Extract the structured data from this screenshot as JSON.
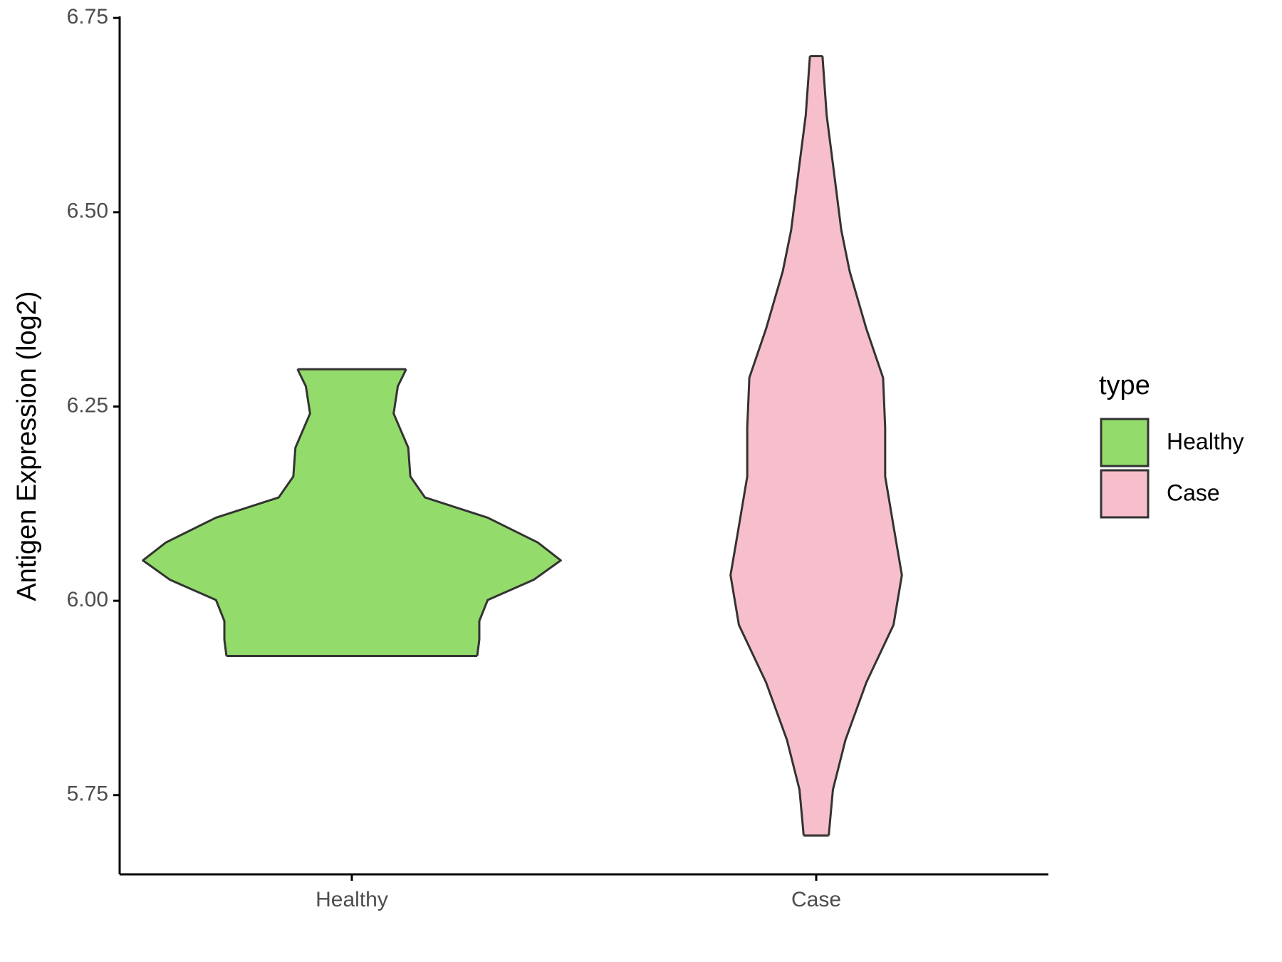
{
  "chart_data": {
    "type": "violin",
    "ylabel": "Antigen Expression (log2)",
    "categories": [
      "Healthy",
      "Case"
    ],
    "series": [
      {
        "name": "Healthy",
        "color": "#93dc6b",
        "y": [
          5.929,
          5.95,
          5.974,
          6.001,
          6.027,
          6.052,
          6.075,
          6.107,
          6.133,
          6.16,
          6.197,
          6.241,
          6.276,
          6.298
        ],
        "width": [
          0.6,
          0.61,
          0.61,
          0.65,
          0.87,
          1.0,
          0.89,
          0.65,
          0.35,
          0.28,
          0.27,
          0.2,
          0.22,
          0.26
        ]
      },
      {
        "name": "Case",
        "color": "#f7bfcb",
        "y": [
          5.698,
          5.757,
          5.821,
          5.895,
          5.969,
          6.033,
          6.096,
          6.16,
          6.223,
          6.287,
          6.35,
          6.424,
          6.477,
          6.562,
          6.625,
          6.701
        ],
        "width": [
          0.06,
          0.08,
          0.14,
          0.24,
          0.37,
          0.41,
          0.37,
          0.33,
          0.33,
          0.32,
          0.24,
          0.16,
          0.12,
          0.08,
          0.05,
          0.03
        ]
      }
    ],
    "ylim": [
      5.648,
      6.752
    ],
    "yticks": [
      {
        "value": 5.75,
        "label": "5.75"
      },
      {
        "value": 6,
        "label": "6.00"
      },
      {
        "value": 6.25,
        "label": "6.25"
      },
      {
        "value": 6.5,
        "label": "6.50"
      },
      {
        "value": 6.75,
        "label": "6.75"
      }
    ],
    "legend_title": "type",
    "legend": "right",
    "grid": false
  }
}
